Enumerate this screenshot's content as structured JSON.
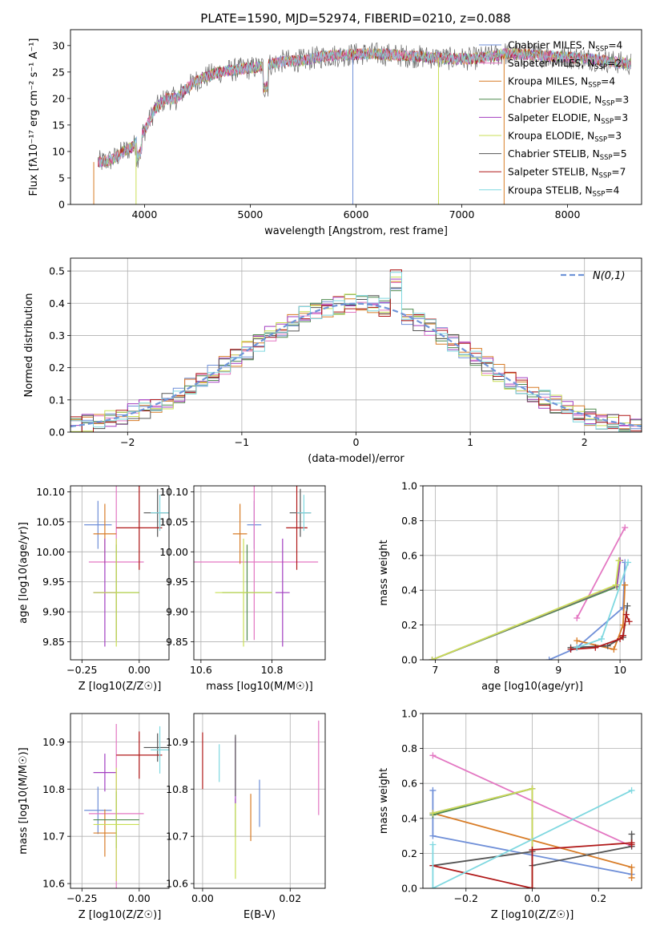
{
  "figure_title": "PLATE=1590, MJD=52974, FIBERID=0210, z=0.088",
  "models": [
    {
      "name": "Chabrier MILES",
      "nssp": "4",
      "color": "#6f8fd8"
    },
    {
      "name": "Salpeter MILES",
      "nssp": "2",
      "color": "#e377c2"
    },
    {
      "name": "Kroupa MILES",
      "nssp": "4",
      "color": "#d87c27"
    },
    {
      "name": "Chabrier ELODIE",
      "nssp": "3",
      "color": "#4f8a4f"
    },
    {
      "name": "Salpeter ELODIE",
      "nssp": "3",
      "color": "#a23ec0"
    },
    {
      "name": "Kroupa ELODIE",
      "nssp": "3",
      "color": "#c9df55"
    },
    {
      "name": "Chabrier STELIB",
      "nssp": "5",
      "color": "#555555"
    },
    {
      "name": "Salpeter STELIB",
      "nssp": "7",
      "color": "#b01818"
    },
    {
      "name": "Kroupa STELIB",
      "nssp": "4",
      "color": "#7fd8e0"
    }
  ],
  "nssp_label": "N",
  "nssp_sub": "SSP",
  "chart_data": [
    {
      "id": "spectrum",
      "type": "line",
      "xlabel": "wavelength [Angstrom, rest frame]",
      "ylabel": "Flux [fλ10⁻¹⁷ erg cm⁻² s⁻¹ A⁻¹]",
      "xlim": [
        3300,
        8700
      ],
      "ylim": [
        0,
        33
      ],
      "xticks": [
        4000,
        5000,
        6000,
        7000,
        8000
      ],
      "yticks": [
        0,
        5,
        10,
        15,
        20,
        25,
        30
      ],
      "grid": false,
      "legend": "right",
      "spectrum_shape": {
        "x": [
          3600,
          3700,
          3800,
          3900,
          4000,
          4100,
          4200,
          4300,
          4400,
          4500,
          4700,
          4900,
          5100,
          5300,
          5500,
          5700,
          5900,
          6100,
          6300,
          6500,
          6700,
          6900,
          7100,
          7300,
          7400,
          7600,
          7800,
          8000,
          8200,
          8400,
          8600
        ],
        "y": [
          8,
          8.5,
          10,
          11,
          14,
          18,
          20,
          20,
          22,
          23.5,
          25,
          25.5,
          26,
          27,
          27.2,
          28,
          28.2,
          28.5,
          28.3,
          28,
          27.8,
          27.5,
          27.5,
          28,
          28.5,
          28.3,
          28,
          27.8,
          27.5,
          27,
          26.5
        ]
      },
      "dropouts": [
        3520,
        3920,
        5970,
        6780,
        7400
      ]
    },
    {
      "id": "residuals",
      "type": "histogram",
      "xlabel": "(data-model)/error",
      "ylabel": "Normed distribution",
      "xlim": [
        -2.5,
        2.5
      ],
      "ylim": [
        0,
        0.54
      ],
      "xticks": [
        -2,
        -1,
        0,
        1,
        2
      ],
      "yticks": [
        0.0,
        0.1,
        0.2,
        0.3,
        0.4,
        0.5
      ],
      "grid": true,
      "legend": "top-right",
      "reference_label": "N(0,1)",
      "bin_width": 0.1
    },
    {
      "id": "age_vs_Z",
      "type": "errorbar",
      "xlabel": "Z [log10(Z/Z☉)]",
      "ylabel": "age [log10(age/yr)]",
      "xlim": [
        -0.3,
        0.13
      ],
      "ylim": [
        9.82,
        10.11
      ],
      "xticks": [
        -0.25,
        0.0
      ],
      "yticks": [
        9.85,
        9.9,
        9.95,
        10.0,
        10.05,
        10.1
      ],
      "grid": true,
      "points": [
        {
          "m": 0,
          "x": -0.18,
          "xe": 0.06,
          "y": 10.045,
          "ye": 0.04
        },
        {
          "m": 1,
          "x": -0.1,
          "xe": 0.12,
          "y": 9.983,
          "ye": 0.13
        },
        {
          "m": 2,
          "x": -0.15,
          "xe": 0.05,
          "y": 10.03,
          "ye": 0.05
        },
        {
          "m": 3,
          "x": -0.1,
          "xe": 0.1,
          "y": 9.932,
          "ye": 0.08
        },
        {
          "m": 4,
          "x": -0.15,
          "xe": 0.05,
          "y": 9.932,
          "ye": 0.09
        },
        {
          "m": 5,
          "x": -0.1,
          "xe": 0.1,
          "y": 9.932,
          "ye": 0.09
        },
        {
          "m": 6,
          "x": 0.08,
          "xe": 0.06,
          "y": 10.065,
          "ye": 0.04
        },
        {
          "m": 7,
          "x": 0.0,
          "xe": 0.1,
          "y": 10.04,
          "ye": 0.07
        },
        {
          "m": 8,
          "x": 0.09,
          "xe": 0.04,
          "y": 10.065,
          "ye": 0.03
        }
      ]
    },
    {
      "id": "age_vs_mass",
      "type": "errorbar",
      "xlabel": "mass [log10(M/M☉)]",
      "ylabel": "",
      "xlim": [
        10.58,
        10.95
      ],
      "ylim": [
        9.82,
        10.11
      ],
      "xticks": [
        10.6,
        10.8
      ],
      "yticks": [
        9.85,
        9.9,
        9.95,
        10.0,
        10.05,
        10.1
      ],
      "grid": true,
      "points": [
        {
          "m": 0,
          "x": 10.75,
          "xe": 0.02,
          "y": 10.045,
          "ye": 0.04
        },
        {
          "m": 1,
          "x": 10.75,
          "xe": 0.18,
          "y": 9.983,
          "ye": 0.13
        },
        {
          "m": 2,
          "x": 10.71,
          "xe": 0.02,
          "y": 10.03,
          "ye": 0.05
        },
        {
          "m": 3,
          "x": 10.73,
          "xe": 0.07,
          "y": 9.932,
          "ye": 0.08
        },
        {
          "m": 4,
          "x": 10.83,
          "xe": 0.02,
          "y": 9.932,
          "ye": 0.09
        },
        {
          "m": 5,
          "x": 10.72,
          "xe": 0.08,
          "y": 9.932,
          "ye": 0.09
        },
        {
          "m": 6,
          "x": 10.88,
          "xe": 0.03,
          "y": 10.065,
          "ye": 0.04
        },
        {
          "m": 7,
          "x": 10.87,
          "xe": 0.03,
          "y": 10.04,
          "ye": 0.07
        },
        {
          "m": 8,
          "x": 10.89,
          "xe": 0.02,
          "y": 10.065,
          "ye": 0.03
        }
      ]
    },
    {
      "id": "mass_vs_Z",
      "type": "errorbar",
      "xlabel": "Z [log10(Z/Z☉)]",
      "ylabel": "mass [log10(M/M☉)]",
      "xlim": [
        -0.3,
        0.13
      ],
      "ylim": [
        10.59,
        10.96
      ],
      "xticks": [
        -0.25,
        0.0
      ],
      "yticks": [
        10.6,
        10.7,
        10.8,
        10.9
      ],
      "grid": true,
      "points": [
        {
          "m": 0,
          "x": -0.18,
          "xe": 0.06,
          "y": 10.755,
          "ye": 0.05
        },
        {
          "m": 1,
          "x": -0.1,
          "xe": 0.12,
          "y": 10.748,
          "ye": 0.19
        },
        {
          "m": 2,
          "x": -0.15,
          "xe": 0.05,
          "y": 10.707,
          "ye": 0.05
        },
        {
          "m": 3,
          "x": -0.1,
          "xe": 0.1,
          "y": 10.735,
          "ye": 0.06
        },
        {
          "m": 4,
          "x": -0.15,
          "xe": 0.05,
          "y": 10.835,
          "ye": 0.04
        },
        {
          "m": 5,
          "x": -0.1,
          "xe": 0.1,
          "y": 10.725,
          "ye": 0.12
        },
        {
          "m": 6,
          "x": 0.08,
          "xe": 0.06,
          "y": 10.888,
          "ye": 0.03
        },
        {
          "m": 7,
          "x": 0.0,
          "xe": 0.1,
          "y": 10.872,
          "ye": 0.05
        },
        {
          "m": 8,
          "x": 0.09,
          "xe": 0.04,
          "y": 10.883,
          "ye": 0.05
        }
      ]
    },
    {
      "id": "mass_vs_EBV",
      "type": "errorbar",
      "xlabel": "E(B-V)",
      "ylabel": "",
      "xlim": [
        -0.002,
        0.028
      ],
      "ylim": [
        10.59,
        10.96
      ],
      "xticks": [
        0.0,
        0.02
      ],
      "yticks": [
        10.6,
        10.7,
        10.8,
        10.9
      ],
      "grid": true,
      "points": [
        {
          "m": 0,
          "x": 0.013,
          "xe": 0,
          "y": 10.77,
          "ye": 0.05
        },
        {
          "m": 1,
          "x": 0.0265,
          "xe": 0,
          "y": 10.845,
          "ye": 0.1
        },
        {
          "m": 2,
          "x": 0.011,
          "xe": 0,
          "y": 10.74,
          "ye": 0.05
        },
        {
          "m": 3,
          "x": 0.0075,
          "xe": 0,
          "y": 10.74,
          "ye": 0.04
        },
        {
          "m": 4,
          "x": 0.0075,
          "xe": 0,
          "y": 10.84,
          "ye": 0.07
        },
        {
          "m": 5,
          "x": 0.0075,
          "xe": 0,
          "y": 10.69,
          "ye": 0.08
        },
        {
          "m": 6,
          "x": 0.0075,
          "xe": 0,
          "y": 10.85,
          "ye": 0.065
        },
        {
          "m": 7,
          "x": 0.0,
          "xe": 0,
          "y": 10.86,
          "ye": 0.06
        },
        {
          "m": 8,
          "x": 0.0038,
          "xe": 0,
          "y": 10.855,
          "ye": 0.04
        }
      ]
    },
    {
      "id": "weight_vs_age",
      "type": "line",
      "xlabel": "age [log10(age/yr)]",
      "ylabel": "mass weight",
      "xlim": [
        6.8,
        10.35
      ],
      "ylim": [
        0,
        1
      ],
      "xticks": [
        7,
        8,
        9,
        10
      ],
      "yticks": [
        0.0,
        0.2,
        0.4,
        0.6,
        0.8,
        1.0
      ],
      "grid": true,
      "series": [
        {
          "m": 0,
          "x": [
            8.85,
            9.3,
            10.05,
            10.08
          ],
          "y": [
            0.0,
            0.07,
            0.3,
            0.56
          ]
        },
        {
          "m": 1,
          "x": [
            9.3,
            10.08
          ],
          "y": [
            0.24,
            0.76
          ]
        },
        {
          "m": 2,
          "x": [
            9.3,
            9.9,
            10.05,
            10.08
          ],
          "y": [
            0.11,
            0.06,
            0.2,
            0.43
          ]
        },
        {
          "m": 3,
          "x": [
            6.95,
            9.95,
            10.0
          ],
          "y": [
            0.0,
            0.42,
            0.57
          ]
        },
        {
          "m": 4,
          "x": [
            6.95,
            9.95,
            10.0
          ],
          "y": [
            0.0,
            0.43,
            0.57
          ]
        },
        {
          "m": 5,
          "x": [
            6.95,
            9.93,
            9.98
          ],
          "y": [
            0.0,
            0.43,
            0.57
          ]
        },
        {
          "m": 6,
          "x": [
            9.2,
            9.8,
            10.05,
            10.12
          ],
          "y": [
            0.07,
            0.08,
            0.13,
            0.31
          ]
        },
        {
          "m": 7,
          "x": [
            9.2,
            9.6,
            10.0,
            10.05,
            10.1,
            10.15
          ],
          "y": [
            0.06,
            0.07,
            0.12,
            0.14,
            0.26,
            0.22
          ]
        },
        {
          "m": 8,
          "x": [
            9.3,
            9.7,
            10.13
          ],
          "y": [
            0.07,
            0.12,
            0.56
          ]
        }
      ]
    },
    {
      "id": "weight_vs_Z",
      "type": "line",
      "xlabel": "Z [log10(Z/Z☉)]",
      "ylabel": "mass weight",
      "xlim": [
        -0.33,
        0.33
      ],
      "ylim": [
        0,
        1
      ],
      "xticks": [
        -0.2,
        0.0,
        0.2
      ],
      "yticks": [
        0.0,
        0.2,
        0.4,
        0.6,
        0.8,
        1.0
      ],
      "grid": true,
      "series": [
        {
          "m": 0,
          "x": [
            -0.3,
            -0.3,
            0.3
          ],
          "y": [
            0.56,
            0.3,
            0.08
          ]
        },
        {
          "m": 1,
          "x": [
            -0.3,
            0.3
          ],
          "y": [
            0.76,
            0.24
          ]
        },
        {
          "m": 2,
          "x": [
            -0.3,
            0.3,
            0.3
          ],
          "y": [
            0.43,
            0.12,
            0.06
          ]
        },
        {
          "m": 3,
          "x": [
            -0.3,
            0.0,
            0.0
          ],
          "y": [
            0.42,
            0.57,
            0.0
          ]
        },
        {
          "m": 4,
          "x": [
            -0.3,
            0.0,
            0.0
          ],
          "y": [
            0.43,
            0.57,
            0.0
          ]
        },
        {
          "m": 5,
          "x": [
            -0.3,
            0.0,
            0.0
          ],
          "y": [
            0.43,
            0.57,
            0.0
          ]
        },
        {
          "m": 6,
          "x": [
            -0.3,
            0.0,
            0.0,
            0.3,
            0.3
          ],
          "y": [
            0.13,
            0.21,
            0.13,
            0.24,
            0.31
          ]
        },
        {
          "m": 7,
          "x": [
            -0.3,
            0.0,
            0.0,
            0.3,
            0.3
          ],
          "y": [
            0.13,
            0.0,
            0.22,
            0.26,
            0.25
          ]
        },
        {
          "m": 8,
          "x": [
            -0.3,
            -0.3,
            0.3
          ],
          "y": [
            0.25,
            0.0,
            0.56
          ]
        }
      ]
    }
  ]
}
